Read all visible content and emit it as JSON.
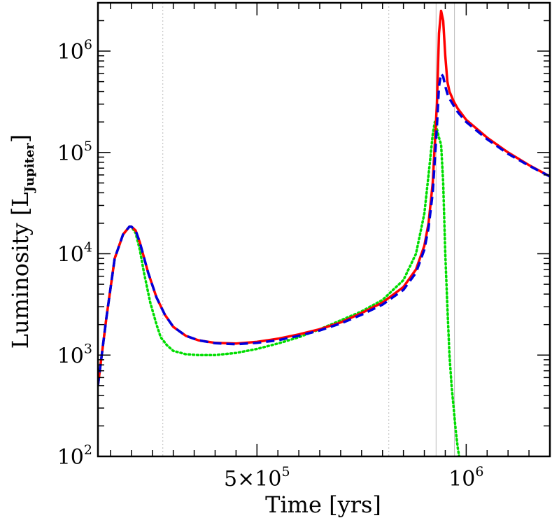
{
  "chart_data": {
    "type": "line",
    "title": "",
    "xlabel": "Time [yrs]",
    "ylabel": {
      "prefix": "Luminosity [L",
      "subscript": "Jupiter",
      "suffix": "]"
    },
    "x_scale": "linear",
    "y_scale": "log",
    "xlim": [
      120000,
      1200000
    ],
    "ylim": [
      100,
      3000000
    ],
    "x_ticks": [
      {
        "value": 500000,
        "label": "5×10",
        "exp": "5"
      },
      {
        "value": 1000000,
        "label": "10",
        "exp": "6"
      }
    ],
    "y_ticks": [
      {
        "value": 100,
        "label": "10",
        "exp": "2"
      },
      {
        "value": 1000,
        "label": "10",
        "exp": "3"
      },
      {
        "value": 10000,
        "label": "10",
        "exp": "4"
      },
      {
        "value": 100000,
        "label": "10",
        "exp": "5"
      },
      {
        "value": 1000000,
        "label": "10",
        "exp": "6"
      }
    ],
    "vertical_markers": [
      {
        "x": 275000,
        "color": "#bbbbbb",
        "style": "dotted"
      },
      {
        "x": 815000,
        "color": "#bbbbbb",
        "style": "dotted"
      },
      {
        "x": 928000,
        "color": "#bbbbbb",
        "style": "solid"
      },
      {
        "x": 972000,
        "color": "#bbbbbb",
        "style": "solid"
      }
    ],
    "grid": false,
    "series": [
      {
        "color": "#00dd00",
        "style": "dotted",
        "x": [
          120000,
          140000,
          160000,
          180000,
          195000,
          200000,
          210000,
          220000,
          230000,
          245000,
          260000,
          270000,
          285000,
          300000,
          330000,
          360000,
          400000,
          450000,
          500000,
          550000,
          600000,
          650000,
          700000,
          750000,
          800000,
          850000,
          880000,
          900000,
          910000,
          920000,
          925000,
          930000,
          935000,
          940000,
          945000,
          950000,
          955000,
          960000,
          965000,
          970000,
          975000,
          980000,
          985000
        ],
        "y": [
          500,
          2300,
          9000,
          15500,
          18500,
          18500,
          16000,
          11000,
          6500,
          3300,
          2000,
          1500,
          1250,
          1100,
          1020,
          1000,
          1000,
          1050,
          1150,
          1300,
          1500,
          1800,
          2200,
          2700,
          3500,
          5500,
          10000,
          25000,
          60000,
          150000,
          200000,
          170000,
          140000,
          120000,
          50000,
          10000,
          3000,
          1000,
          500,
          300,
          180,
          120,
          90
        ]
      },
      {
        "color": "#ff0000",
        "style": "solid",
        "x": [
          120000,
          140000,
          160000,
          180000,
          195000,
          200000,
          210000,
          220000,
          240000,
          260000,
          280000,
          300000,
          330000,
          360000,
          400000,
          450000,
          500000,
          550000,
          600000,
          650000,
          700000,
          750000,
          800000,
          850000,
          880000,
          900000,
          910000,
          920000,
          930000,
          935000,
          940000,
          945000,
          950000,
          955000,
          960000,
          970000,
          980000,
          1000000,
          1050000,
          1100000,
          1150000,
          1200000
        ],
        "y": [
          500,
          2300,
          9000,
          15500,
          18500,
          18500,
          17000,
          13000,
          6500,
          3700,
          2500,
          1900,
          1550,
          1400,
          1320,
          1300,
          1350,
          1450,
          1600,
          1800,
          2100,
          2600,
          3300,
          4700,
          7000,
          12000,
          20000,
          50000,
          300000,
          1500000,
          2500000,
          2000000,
          900000,
          500000,
          400000,
          320000,
          270000,
          210000,
          140000,
          100000,
          75000,
          58000
        ]
      },
      {
        "color": "#0000dd",
        "style": "dashed",
        "x": [
          120000,
          140000,
          160000,
          180000,
          195000,
          200000,
          210000,
          220000,
          240000,
          260000,
          280000,
          300000,
          330000,
          360000,
          400000,
          450000,
          500000,
          550000,
          600000,
          650000,
          700000,
          750000,
          800000,
          850000,
          880000,
          900000,
          910000,
          920000,
          930000,
          935000,
          940000,
          945000,
          950000,
          955000,
          960000,
          970000,
          980000,
          1000000,
          1050000,
          1100000,
          1150000,
          1200000
        ],
        "y": [
          500,
          2300,
          9000,
          15500,
          18500,
          18500,
          17000,
          13000,
          6500,
          3700,
          2500,
          1900,
          1550,
          1400,
          1310,
          1280,
          1320,
          1400,
          1550,
          1750,
          2050,
          2500,
          3150,
          4400,
          6500,
          11000,
          18000,
          40000,
          180000,
          450000,
          600000,
          560000,
          450000,
          380000,
          340000,
          290000,
          250000,
          200000,
          135000,
          97000,
          74000,
          58000
        ]
      }
    ]
  }
}
